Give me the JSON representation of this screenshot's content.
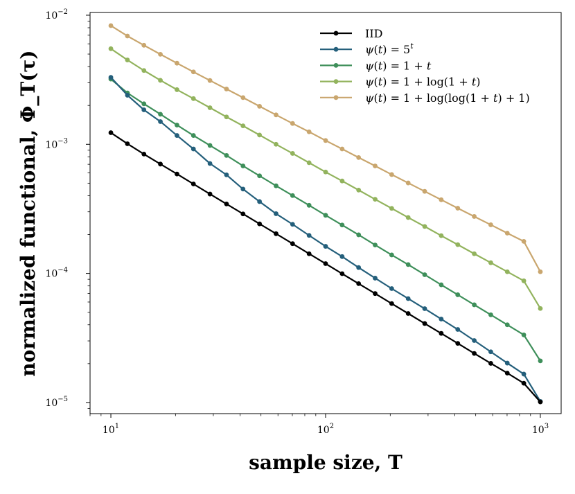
{
  "chart_data": {
    "type": "line",
    "xscale": "log",
    "yscale": "log",
    "xlabel": "sample size, T",
    "ylabel": "normalized functional, Φ_T(τ)",
    "xlim": [
      8,
      1250
    ],
    "ylim": [
      8.2e-06,
      0.0105
    ],
    "xticks": [
      {
        "value": 10,
        "base": "10",
        "exp": "1"
      },
      {
        "value": 100,
        "base": "10",
        "exp": "2"
      },
      {
        "value": 1000,
        "base": "10",
        "exp": "3"
      }
    ],
    "yticks": [
      {
        "value": 1e-05,
        "base": "10",
        "exp": "−5"
      },
      {
        "value": 0.0001,
        "base": "10",
        "exp": "−4"
      },
      {
        "value": 0.001,
        "base": "10",
        "exp": "−3"
      },
      {
        "value": 0.01,
        "base": "10",
        "exp": "−2"
      }
    ],
    "x": [
      10,
      11.94,
      14.25,
      17.01,
      20.31,
      24.24,
      28.94,
      34.55,
      41.25,
      49.24,
      58.78,
      70.17,
      83.77,
      100,
      119.4,
      142.5,
      170.1,
      203.1,
      242.4,
      289.4,
      345.5,
      412.5,
      492.4,
      587.8,
      701.7,
      837.7,
      1000
    ],
    "series": [
      {
        "name": "IID",
        "label_parts": [
          [
            "IID",
            ""
          ]
        ],
        "color": "#000000",
        "values": [
          0.00123,
          0.00101,
          0.00084,
          0.000703,
          0.000589,
          0.000493,
          0.000412,
          0.000345,
          0.000289,
          0.000242,
          0.000203,
          0.00017,
          0.000142,
          0.000119,
          9.95e-05,
          8.33e-05,
          6.98e-05,
          5.84e-05,
          4.89e-05,
          4.09e-05,
          3.43e-05,
          2.87e-05,
          2.4e-05,
          2.01e-05,
          1.69e-05,
          1.41e-05,
          1.01e-05
        ]
      },
      {
        "name": "ψ(t) = 5^t",
        "label_parts": [
          [
            "ψ",
            "it"
          ],
          [
            "(",
            ""
          ],
          [
            "t",
            "it"
          ],
          [
            ") = 5",
            ""
          ],
          [
            "t",
            "sup-it"
          ]
        ],
        "color": "#245f7b",
        "values": [
          0.0033,
          0.0024,
          0.00185,
          0.0015,
          0.00117,
          0.00092,
          0.00071,
          0.00058,
          0.00045,
          0.00036,
          0.00029,
          0.00024,
          0.000197,
          0.000162,
          0.000135,
          0.000111,
          9.19e-05,
          7.63e-05,
          6.38e-05,
          5.33e-05,
          4.43e-05,
          3.68e-05,
          3.02e-05,
          2.47e-05,
          2.02e-05,
          1.66e-05,
          1.02e-05
        ]
      },
      {
        "name": "ψ(t) = 1 + t",
        "label_parts": [
          [
            "ψ",
            "it"
          ],
          [
            "(",
            ""
          ],
          [
            "t",
            "it"
          ],
          [
            ") = 1 + ",
            ""
          ],
          [
            "t",
            "it"
          ]
        ],
        "color": "#3e8f5a",
        "values": [
          0.0032,
          0.0025,
          0.00206,
          0.00171,
          0.00141,
          0.00117,
          0.00098,
          0.00082,
          0.00068,
          0.00057,
          0.000477,
          0.000401,
          0.000337,
          0.000282,
          0.000237,
          0.000199,
          0.000166,
          0.000139,
          0.000117,
          9.77e-05,
          8.16e-05,
          6.83e-05,
          5.71e-05,
          4.78e-05,
          4e-05,
          3.34e-05,
          2.1e-05
        ]
      },
      {
        "name": "ψ(t) = 1 + log(1 + t)",
        "label_parts": [
          [
            "ψ",
            "it"
          ],
          [
            "(",
            ""
          ],
          [
            "t",
            "it"
          ],
          [
            ") = 1 + log(1 + ",
            ""
          ],
          [
            "t",
            "it"
          ],
          [
            ")",
            ""
          ]
        ],
        "color": "#92b35d",
        "values": [
          0.0055,
          0.0045,
          0.00373,
          0.00313,
          0.00265,
          0.00226,
          0.00192,
          0.00163,
          0.00139,
          0.00118,
          0.001,
          0.00085,
          0.00072,
          0.00061,
          0.00052,
          0.000442,
          0.000375,
          0.000319,
          0.000271,
          0.000231,
          0.000196,
          0.000167,
          0.000142,
          0.000121,
          0.000103,
          8.76e-05,
          5.35e-05
        ]
      },
      {
        "name": "ψ(t) = 1 + log(log(1 + t) + 1)",
        "label_parts": [
          [
            "ψ",
            "it"
          ],
          [
            "(",
            ""
          ],
          [
            "t",
            "it"
          ],
          [
            ") = 1 + log(log(1 + ",
            ""
          ],
          [
            "t",
            "it"
          ],
          [
            ") + 1)",
            ""
          ]
        ],
        "color": "#c9a66e",
        "values": [
          0.0083,
          0.0069,
          0.00585,
          0.00498,
          0.00425,
          0.00364,
          0.00312,
          0.00268,
          0.0023,
          0.00197,
          0.00169,
          0.00145,
          0.00125,
          0.00107,
          0.00092,
          0.00079,
          0.00068,
          0.000583,
          0.000502,
          0.000432,
          0.000372,
          0.00032,
          0.000276,
          0.000238,
          0.000205,
          0.000177,
          0.000103
        ]
      }
    ]
  }
}
